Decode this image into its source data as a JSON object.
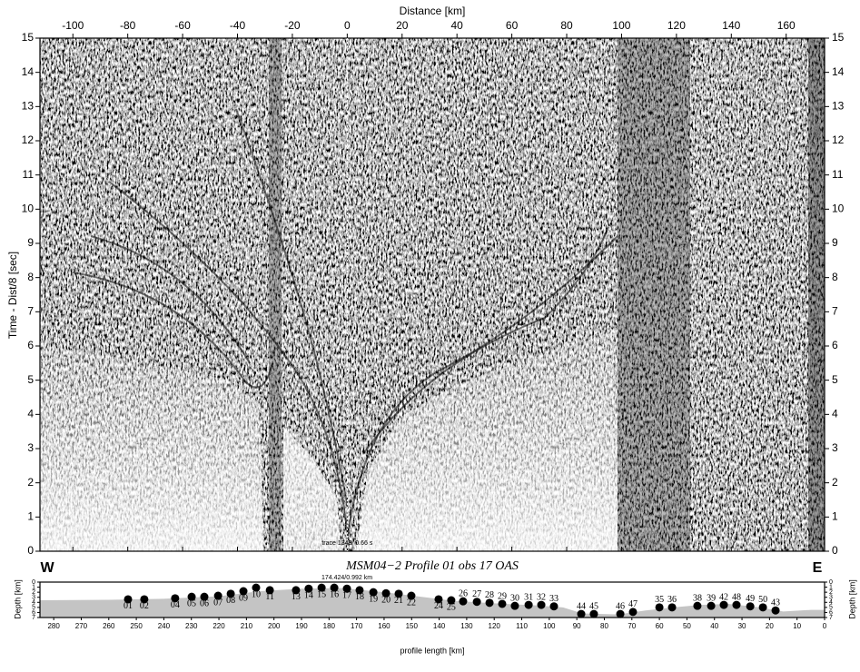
{
  "chart_data": [
    {
      "type": "record-section",
      "x_label": "Distance [km]",
      "y_label": "Time - Dist/8 [sec]",
      "xlim": [
        -112,
        174
      ],
      "xticks": [
        -100,
        -80,
        -60,
        -40,
        -20,
        0,
        20,
        40,
        60,
        80,
        100,
        120,
        140,
        160
      ],
      "ylim": [
        0,
        15
      ],
      "yticks": [
        0,
        1,
        2,
        3,
        4,
        5,
        6,
        7,
        8,
        9,
        10,
        11,
        12,
        13,
        14,
        15
      ],
      "annotation": "trace 1343/ 0.66 s",
      "annotation_x": 0
    },
    {
      "type": "scatter",
      "title": "MSM04−2 Profile 01 obs 17 OAS",
      "left_label": "W",
      "right_label": "E",
      "x_label": "profile length [km]",
      "y_label": "Depth [km]",
      "xlim": [
        285,
        0
      ],
      "xticks": [
        280,
        270,
        260,
        250,
        240,
        230,
        220,
        210,
        200,
        190,
        180,
        170,
        160,
        150,
        140,
        130,
        120,
        110,
        100,
        90,
        80,
        70,
        60,
        50,
        40,
        30,
        20,
        10,
        0
      ],
      "ylim": [
        7,
        0
      ],
      "yticks": [
        0,
        1,
        2,
        3,
        4,
        5,
        6,
        7
      ],
      "annotation": "174.424/0.992 km",
      "point_labels": [
        "01",
        "02",
        "04",
        "05",
        "06",
        "07",
        "08",
        "09",
        "10",
        "11",
        "13",
        "14",
        "15",
        "16",
        "17",
        "18",
        "19",
        "20",
        "21",
        "22",
        "24",
        "25",
        "26",
        "27",
        "28",
        "29",
        "30",
        "31",
        "32",
        "33",
        "44",
        "45",
        "46",
        "47",
        "35",
        "36",
        "38",
        "39",
        "42",
        "48",
        "49",
        "50",
        "43"
      ],
      "x": [
        253.0,
        247.1,
        235.9,
        229.9,
        225.3,
        220.3,
        215.7,
        211.1,
        206.5,
        201.5,
        192.0,
        187.4,
        182.7,
        178.1,
        173.5,
        168.9,
        163.9,
        159.3,
        154.7,
        150.1,
        140.2,
        135.6,
        131.3,
        126.3,
        121.7,
        117.1,
        112.5,
        107.5,
        102.9,
        98.3,
        88.4,
        83.8,
        74.2,
        69.6,
        60.0,
        55.4,
        46.2,
        41.2,
        36.6,
        32.0,
        27.0,
        22.4,
        17.8
      ],
      "values": [
        3.4,
        3.4,
        3.2,
        2.9,
        2.9,
        2.7,
        2.3,
        1.8,
        1.1,
        1.6,
        1.6,
        1.3,
        1.1,
        1.1,
        1.3,
        1.6,
        2.0,
        2.2,
        2.3,
        2.7,
        3.4,
        3.6,
        3.8,
        3.9,
        4.1,
        4.3,
        4.7,
        4.5,
        4.5,
        4.8,
        6.3,
        6.3,
        6.3,
        5.9,
        5.0,
        5.0,
        4.7,
        4.7,
        4.5,
        4.5,
        4.8,
        5.0,
        5.6
      ],
      "seafloor": {
        "x": [
          285,
          260,
          240,
          220,
          205,
          190,
          175,
          160,
          145,
          135,
          120,
          105,
          95,
          88,
          75,
          65,
          55,
          45,
          35,
          25,
          15,
          5,
          0
        ],
        "values": [
          3.6,
          3.5,
          3.3,
          2.8,
          1.8,
          1.3,
          1.2,
          2.0,
          3.0,
          3.7,
          4.2,
          4.6,
          5.0,
          6.2,
          6.4,
          5.6,
          5.0,
          4.5,
          4.3,
          4.9,
          5.8,
          5.5,
          5.5
        ]
      }
    }
  ]
}
